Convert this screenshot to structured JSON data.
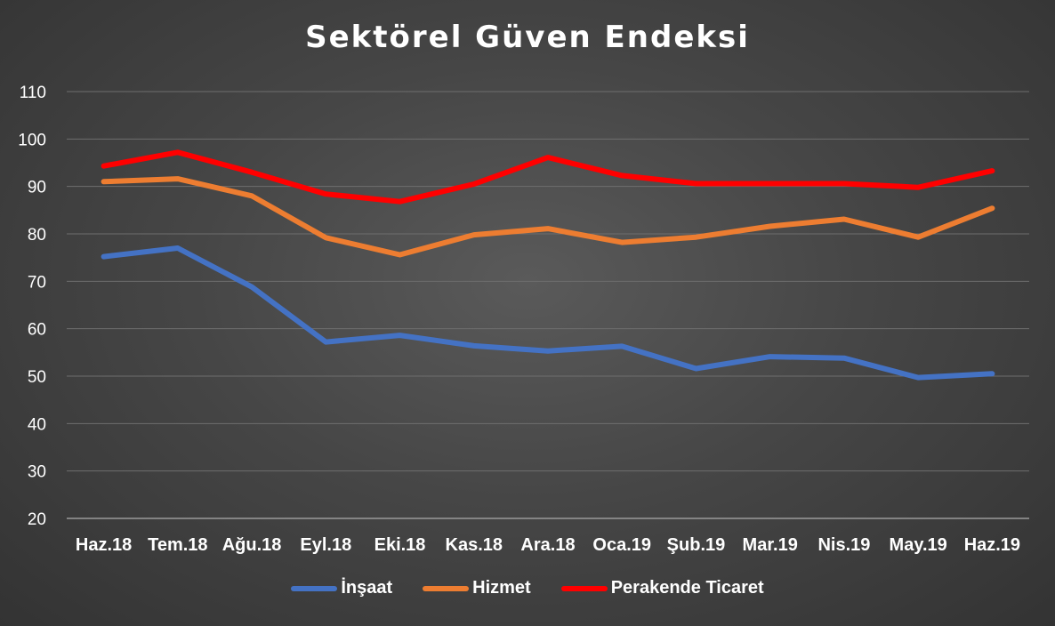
{
  "chart_data": {
    "type": "line",
    "title": "Sektörel Güven Endeksi",
    "xlabel": "",
    "ylabel": "",
    "categories": [
      "Haz.18",
      "Tem.18",
      "Ağu.18",
      "Eyl.18",
      "Eki.18",
      "Kas.18",
      "Ara.18",
      "Oca.19",
      "Şub.19",
      "Mar.19",
      "Nis.19",
      "May.19",
      "Haz.19"
    ],
    "ylim": [
      20,
      110
    ],
    "yticks": [
      20,
      30,
      40,
      50,
      60,
      70,
      80,
      90,
      100,
      110
    ],
    "grid": true,
    "legend_position": "bottom",
    "series": [
      {
        "name": "İnşaat",
        "color": "#4472C4",
        "values": [
          75.2,
          77.0,
          68.8,
          57.2,
          58.6,
          56.4,
          55.3,
          56.3,
          51.6,
          54.1,
          53.8,
          49.7,
          50.5
        ]
      },
      {
        "name": "Hizmet",
        "color": "#ED7D31",
        "values": [
          91.0,
          91.6,
          88.0,
          79.2,
          75.6,
          79.8,
          81.1,
          78.2,
          79.3,
          81.6,
          83.1,
          79.3,
          85.4
        ]
      },
      {
        "name": "Perakende Ticaret",
        "color": "#FF0000",
        "values": [
          94.3,
          97.2,
          93.0,
          88.4,
          86.8,
          90.5,
          96.1,
          92.3,
          90.6,
          90.6,
          90.6,
          89.8,
          93.3
        ]
      }
    ]
  }
}
